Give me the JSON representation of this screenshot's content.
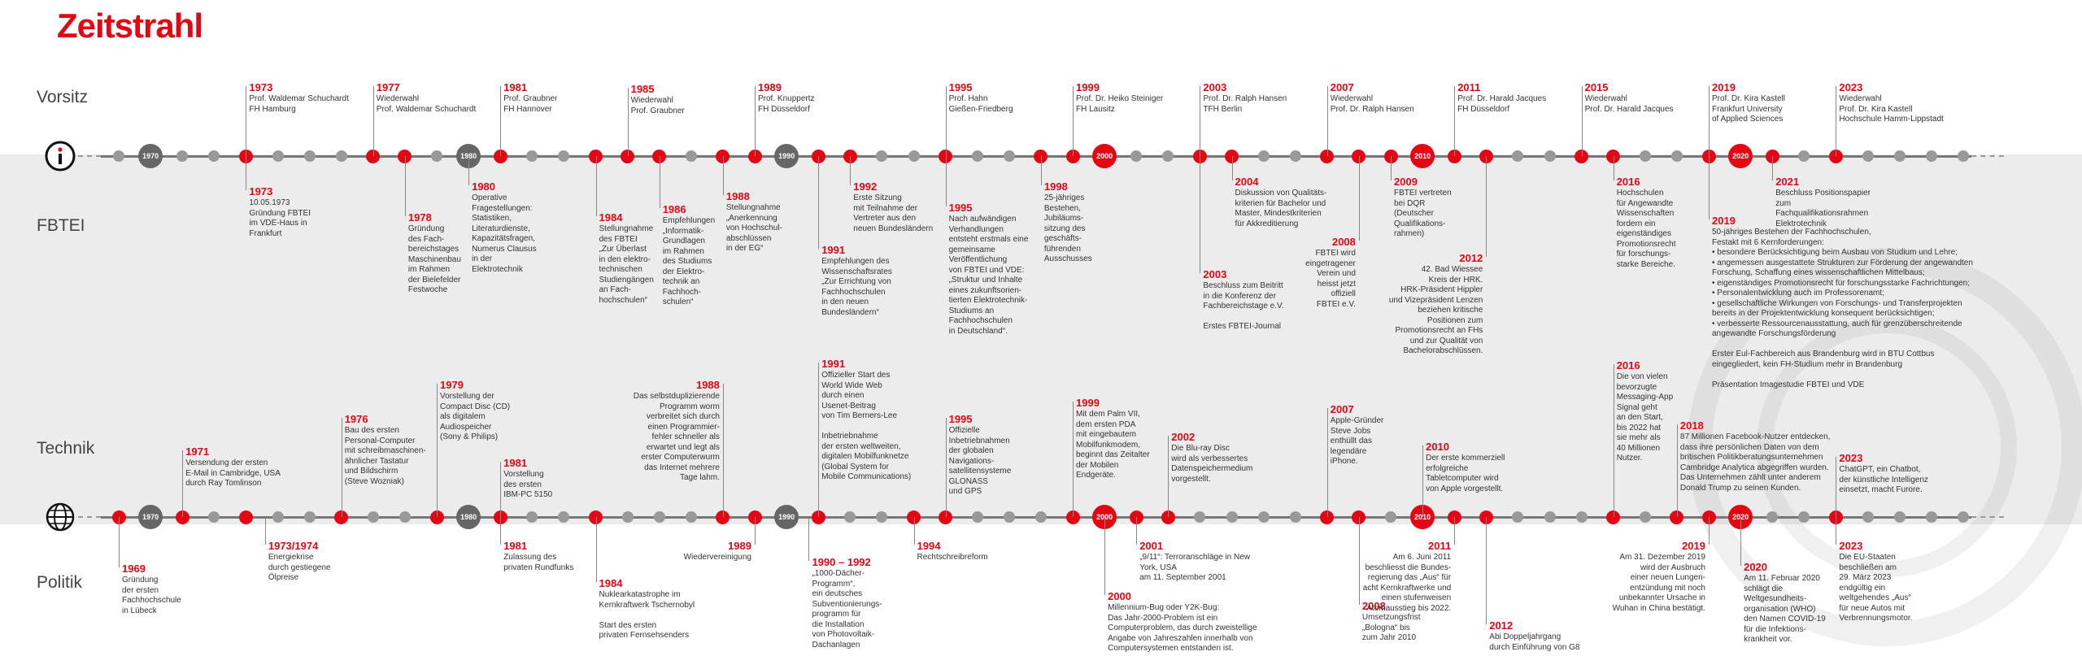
{
  "title": "Zeitstrahl",
  "rows": {
    "vorsitz": "Vorsitz",
    "fbtei": "FBTEI",
    "technik": "Technik",
    "politik": "Politik"
  },
  "decades": [
    "1970",
    "1980",
    "1990",
    "2000",
    "2010",
    "2020"
  ],
  "icons": {
    "top": "info-icon",
    "bottom": "globe-icon"
  },
  "colors": {
    "accent": "#e30613",
    "axis": "#777777",
    "decade": "#666666",
    "band": "#ececec"
  },
  "vorsitz": [
    {
      "year": "1973",
      "text": "Prof. Waldemar Schuchardt\nFH Hamburg"
    },
    {
      "year": "1977",
      "text": "Wiederwahl\nProf. Waldemar Schuchardt"
    },
    {
      "year": "1981",
      "text": "Prof. Graubner\nFH Hannover"
    },
    {
      "year": "1985",
      "text": "Wiederwahl\nProf. Graubner"
    },
    {
      "year": "1989",
      "text": "Prof. Knuppertz\nFH Düsseldorf"
    },
    {
      "year": "1995",
      "text": "Prof. Hahn\nGießen-Friedberg"
    },
    {
      "year": "1999",
      "text": "Prof. Dr. Heiko Steiniger\nFH Lausitz"
    },
    {
      "year": "2003",
      "text": "Prof. Dr. Ralph Hansen\nTFH Berlin"
    },
    {
      "year": "2007",
      "text": "Wiederwahl\nProf. Dr. Ralph Hansen"
    },
    {
      "year": "2011",
      "text": "Prof. Dr. Harald Jacques\nFH Düsseldorf"
    },
    {
      "year": "2015",
      "text": "Wiederwahl\nProf. Dr. Harald Jacques"
    },
    {
      "year": "2019",
      "text": "Prof. Dr. Kira Kastell\nFrankfurt University\nof Applied Sciences"
    },
    {
      "year": "2023",
      "text": "Wiederwahl\nProf. Dr. Kira Kastell\nHochschule Hamm-Lippstadt"
    }
  ],
  "fbtei": [
    {
      "year": "1973",
      "text": "10.05.1973\nGründung FBTEI\nim VDE-Haus in\nFrankfurt"
    },
    {
      "year": "1978",
      "text": "Gründung\ndes Fach-\nbereichstages\nMaschinenbau\nim Rahmen\nder Bielefelder\nFestwoche"
    },
    {
      "year": "1980",
      "text": "Operative\nFragestellungen:\nStatistiken,\nLiteraturdienste,\nKapazitätsfragen,\nNumerus Clausus\nin der\nElektrotechnik"
    },
    {
      "year": "1984",
      "text": "Stellungnahme\ndes FBTEI\n„Zur Überlast\nin den elektro-\ntechnischen\nStudiengängen\nan Fach-\nhochschulen“"
    },
    {
      "year": "1986",
      "text": "Empfehlungen\n„Informatik-\nGrundlagen\nim Rahmen\ndes Studiums\nder Elektro-\ntechnik an\nFachhoch-\nschulen“"
    },
    {
      "year": "1988",
      "text": "Stellungnahme\n„Anerkennung\nvon Hochschul-\nabschlüssen\nin der EG“"
    },
    {
      "year": "1991",
      "text": "Empfehlungen des\nWissenschaftsrates\n„Zur Errichtung von\nFachhochschulen\nin den neuen\nBundesländern“"
    },
    {
      "year": "1992",
      "text": "Erste Sitzung\nmit Teilnahme der\nVertreter aus den\nneuen Bundesländern"
    },
    {
      "year": "1995",
      "text": "Nach aufwändigen\nVerhandlungen\nentsteht erstmals eine\ngemeinsame\nVeröffentlichung\nvon FBTEI und VDE:\n„Struktur und Inhalte\neines zukunftsorien-\ntierten Elektrotechnik-\nStudiums an\nFachhochschulen\nin Deutschland“."
    },
    {
      "year": "1998",
      "text": "25-jähriges\nBestehen,\nJubiläums-\nsitzung des\ngeschäfts-\nführenden\nAusschusses"
    },
    {
      "year": "2003",
      "text": "Beschluss zum Beitritt\nin die Konferenz der\nFachbereichstage e.V.\n\nErstes FBTEI-Journal"
    },
    {
      "year": "2004",
      "text": "Diskussion von Qualitäts-\nkriterien für Bachelor und\nMaster, Mindestkriterien\nfür Akkreditierung"
    },
    {
      "year": "2008",
      "text": "FBTEI wird\neingetragener\nVerein und\nheisst jetzt\noffiziell\nFBTEI e.V."
    },
    {
      "year": "2009",
      "text": "FBTEI vertreten\nbei DQR\n(Deutscher\nQualifikations-\nrahmen)"
    },
    {
      "year": "2012",
      "text": "42. Bad Wiessee\nKreis der HRK.\nHRK-Präsident Hippler\nund Vizepräsident Lenzen\nbeziehen kritische\nPositionen zum\nPromotionsrecht an FHs\nund zur Qualität von\nBachelorabschlüssen."
    },
    {
      "year": "2016",
      "text": "Hochschulen\nfür Angewandte\nWissenschaften\nfordern ein\neigenständiges\nPromotionsrecht\nfür forschungs-\nstarke Bereiche."
    },
    {
      "year": "2019",
      "text": "50-jähriges Bestehen der Fachhochschulen,\nFestakt mit 6 Kernforderungen:\n• besondere Berücksichtigung beim Ausbau von Studium und Lehre;\n• angemessen ausgestattete Strukturen zur Förderung der angewandten\n   Forschung, Schaffung eines wissenschaftlichen Mittelbaus;\n• eigenständiges Promotionsrecht für forschungsstarke Fachrichtungen;\n• Personalentwicklung auch im Professorenamt;\n• gesellschaftliche Wirkungen von Forschungs- und Transferprojekten\n   bereits in der Projektentwicklung konsequent berücksichtigen;\n• verbesserte Ressourcenausstattung, auch für grenzüberschreitende\n   angewandte Forschungsförderung\n\nErster Eul-Fachbereich aus Brandenburg wird in BTU Cottbus\neingegliedert, kein FH-Studium mehr in Brandenburg\n\nPräsentation Imagestudie FBTEI und VDE"
    },
    {
      "year": "2021",
      "text": "Beschluss Positionspapier zum\nFachqualifikationsrahmen Elektrotechnik"
    }
  ],
  "technik": [
    {
      "year": "1971",
      "text": "Versendung der ersten\nE-Mail in Cambridge, USA\ndurch Ray Tomlinson"
    },
    {
      "year": "1976",
      "text": "Bau des ersten\nPersonal-Computer\nmit schreibmaschinen-\nähnlicher Tastatur\nund Bildschirm\n(Steve Wozniak)"
    },
    {
      "year": "1979",
      "text": "Vorstellung der\nCompact Disc (CD)\nals digitalem\nAudiospeicher\n(Sony & Philips)"
    },
    {
      "year": "1981",
      "text": "Vorstellung\ndes ersten\nIBM-PC 5150"
    },
    {
      "year": "1988",
      "text": "Das selbstduplizierende\nProgramm worm\nverbreitet sich durch\neinen Programmier-\nfehler schneller als\nerwartet und legt als\nerster Computerwurm\ndas Internet mehrere\nTage lahm."
    },
    {
      "year": "1991",
      "text": "Offizieller Start des\nWorld Wide Web\ndurch einen\nUsenet-Beitrag\nvon Tim Berners-Lee\n\nInbetriebnahme\nder ersten weltweiten,\ndigitalen Mobilfunknetze\n(Global System for\nMobile Communications)"
    },
    {
      "year": "1995",
      "text": "Offizielle\nInbetriebnahmen\nder globalen\nNavigations-\nsatellitensysteme\nGLONASS\nund GPS"
    },
    {
      "year": "1999",
      "text": "Mit dem Palm VII,\ndem ersten PDA\nmit eingebautem\nMobilfunkmodem,\nbeginnt das Zeitalter\nder Mobilen\nEndgeräte."
    },
    {
      "year": "2002",
      "text": "Die Blu-ray Disc\nwird als verbessertes\nDatenspeichermedium\nvorgestellt."
    },
    {
      "year": "2007",
      "text": "Apple-Gründer\nSteve Jobs\nenthüllt das\nlegendäre\niPhone."
    },
    {
      "year": "2010",
      "text": "Der erste kommerziell\nerfolgreiche\nTabletcomputer wird\nvon Apple vorgestellt."
    },
    {
      "year": "2016",
      "text": "Die von vielen\nbevorzugte\nMessaging-App\nSignal geht\nan den Start,\nbis 2022 hat\nsie mehr als\n40 Millionen\nNutzer."
    },
    {
      "year": "2018",
      "text": "87 Millionen Facebook-Nutzer entdecken,\ndass ihre persönlichen Daten von dem\nbritischen Politikberatungsunternehmen\nCambridge Analytica abgegriffen wurden.\nDas Unternehmen zählt unter anderem\nDonald Trump zu seinen Kunden."
    },
    {
      "year": "2023",
      "text": "ChatGPT, ein Chatbot,\nder künstliche Intelligenz\neinsetzt, macht Furore."
    }
  ],
  "politik": [
    {
      "year": "1969",
      "text": "Gründung\nder ersten\nFachhochschule\nin Lübeck"
    },
    {
      "year": "1973/1974",
      "text": "Energiekrise\ndurch gestiegene\nÖlpreise"
    },
    {
      "year": "1981",
      "text": "Zulassung des\nprivaten Rundfunks"
    },
    {
      "year": "1984",
      "text": "Nuklearkatastrophe im\nKernkraftwerk Tschernobyl\n\nStart des ersten\nprivaten Fernsehsenders"
    },
    {
      "year": "1989",
      "text": "Wiedervereinigung"
    },
    {
      "year": "1990 – 1992",
      "text": "„1000-Dächer-\nProgramm“,\nein deutsches\nSubventionierungs-\nprogramm für\ndie Installation\nvon Photovoltaik-\nDachanlagen"
    },
    {
      "year": "1994",
      "text": "Rechtschreibreform"
    },
    {
      "year": "2000",
      "text": "Millennium-Bug oder Y2K-Bug:\nDas Jahr-2000-Problem ist ein\nComputerproblem, das durch zweistellige\nAngabe von Jahreszahlen innerhalb von\nComputersystemen entstanden ist."
    },
    {
      "year": "2001",
      "text": "„9/11“: Terroranschläge in New York, USA\nam 11. September 2001"
    },
    {
      "year": "2008",
      "text": "Umsetzungsfrist\n„Bologna“ bis\nzum Jahr 2010"
    },
    {
      "year": "2011",
      "text": "Am 6. Juni 2011\nbeschliesst die Bundes-\nregierung das „Aus“ für\nacht Kernkraftwerke und\neinen stufenweisen\nAtomausstieg bis 2022."
    },
    {
      "year": "2012",
      "text": "Abi Doppeljahrgang\ndurch Einführung von G8"
    },
    {
      "year": "2019",
      "text": "Am 31. Dezember 2019\nwird der Ausbruch\neiner neuen Lungen-\nentzündung mit noch\nunbekannter Ursache in\nWuhan in China bestätigt."
    },
    {
      "year": "2020",
      "text": "Am 11. Februar 2020\nschlägt die\nWeltgesundheits-\norganisation (WHO)\nden Namen COVID-19\nfür die Infektions-\nkrankheit vor."
    },
    {
      "year": "2023",
      "text": "Die EU-Staaten\nbeschließen am\n29. März 2023\nendgültig ein\nweltgehendes „Aus“\nfür neue Autos mit\nVerbrennungsmotor."
    }
  ]
}
